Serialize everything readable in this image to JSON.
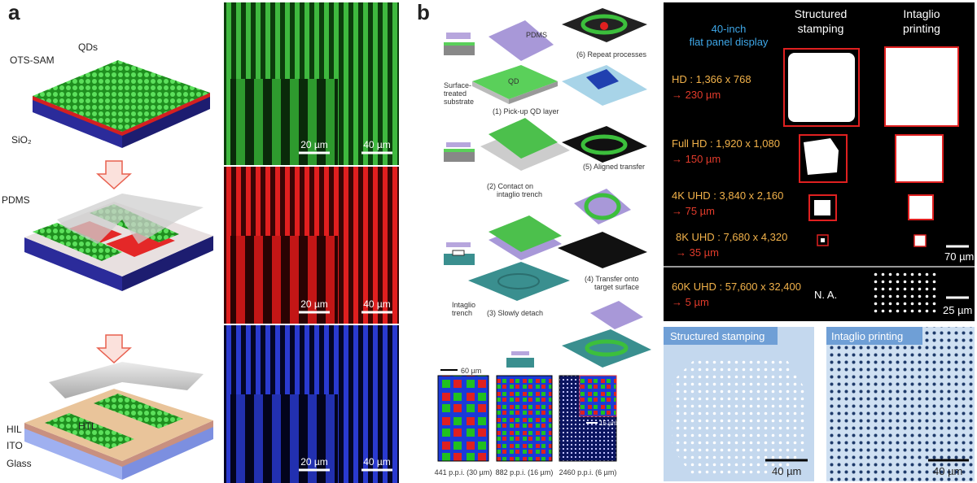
{
  "panel_a": {
    "label": "a",
    "schematic": {
      "ots_sam": "OTS-SAM",
      "qds": "QDs",
      "sio2": "SiO₂",
      "pdms": "PDMS",
      "hil": "HIL",
      "htl": "HTL",
      "ito": "ITO",
      "glass": "Glass"
    },
    "micrographs": [
      {
        "inset_scale": "20 µm",
        "scale": "40 µm"
      },
      {
        "inset_scale": "20 µm",
        "scale": "40 µm"
      },
      {
        "inset_scale": "20 µm",
        "scale": "40 µm"
      }
    ]
  },
  "panel_b": {
    "label": "b",
    "process": {
      "pdms": "PDMS",
      "qd": "QD",
      "substrate": [
        "Surface-",
        "treated",
        "substrate"
      ],
      "step1": "(1) Pick-up QD layer",
      "step2": [
        "(2)  Contact on",
        "intaglio trench"
      ],
      "trench": [
        "Intaglio",
        "trench"
      ],
      "step3": "(3) Slowly detach",
      "step4": [
        "(4) Transfer onto",
        "target surface"
      ],
      "step5": "(5) Aligned transfer",
      "step6": "(6) Repeat processes"
    },
    "pixel_arrays": {
      "scale": "60 µm",
      "inset_scale": "15 µm",
      "captions": [
        "441 p.p.i. (30 µm)",
        "882 p.p.i. (16 µm)",
        "2460 p.p.i. (6 µm)"
      ]
    },
    "table": {
      "header": {
        "display": [
          "40-inch",
          "flat panel display"
        ],
        "stamping": [
          "Structured",
          "stamping"
        ],
        "intaglio": [
          "Intaglio",
          "printing"
        ]
      },
      "rows": [
        {
          "resolution": "HD : 1,366 x 768",
          "pitch": "→ 230 µm"
        },
        {
          "resolution": "Full HD : 1,920 x 1,080",
          "pitch": "→ 150 µm"
        },
        {
          "resolution": "4K UHD : 3,840 x 2,160",
          "pitch": "→ 75 µm"
        },
        {
          "resolution": "8K UHD : 7,680 x 4,320",
          "pitch": "→ 35 µm"
        },
        {
          "resolution": "60K UHD : 57,600 x 32,400",
          "pitch": "→ 5 µm",
          "stamping": "N. A."
        }
      ],
      "scale_top": "70 µm",
      "scale_bottom": "25 µm"
    },
    "images": [
      {
        "title": "Structured stamping",
        "scale": "40 µm"
      },
      {
        "title": "Intaglio printing",
        "scale": "40 µm"
      }
    ]
  }
}
